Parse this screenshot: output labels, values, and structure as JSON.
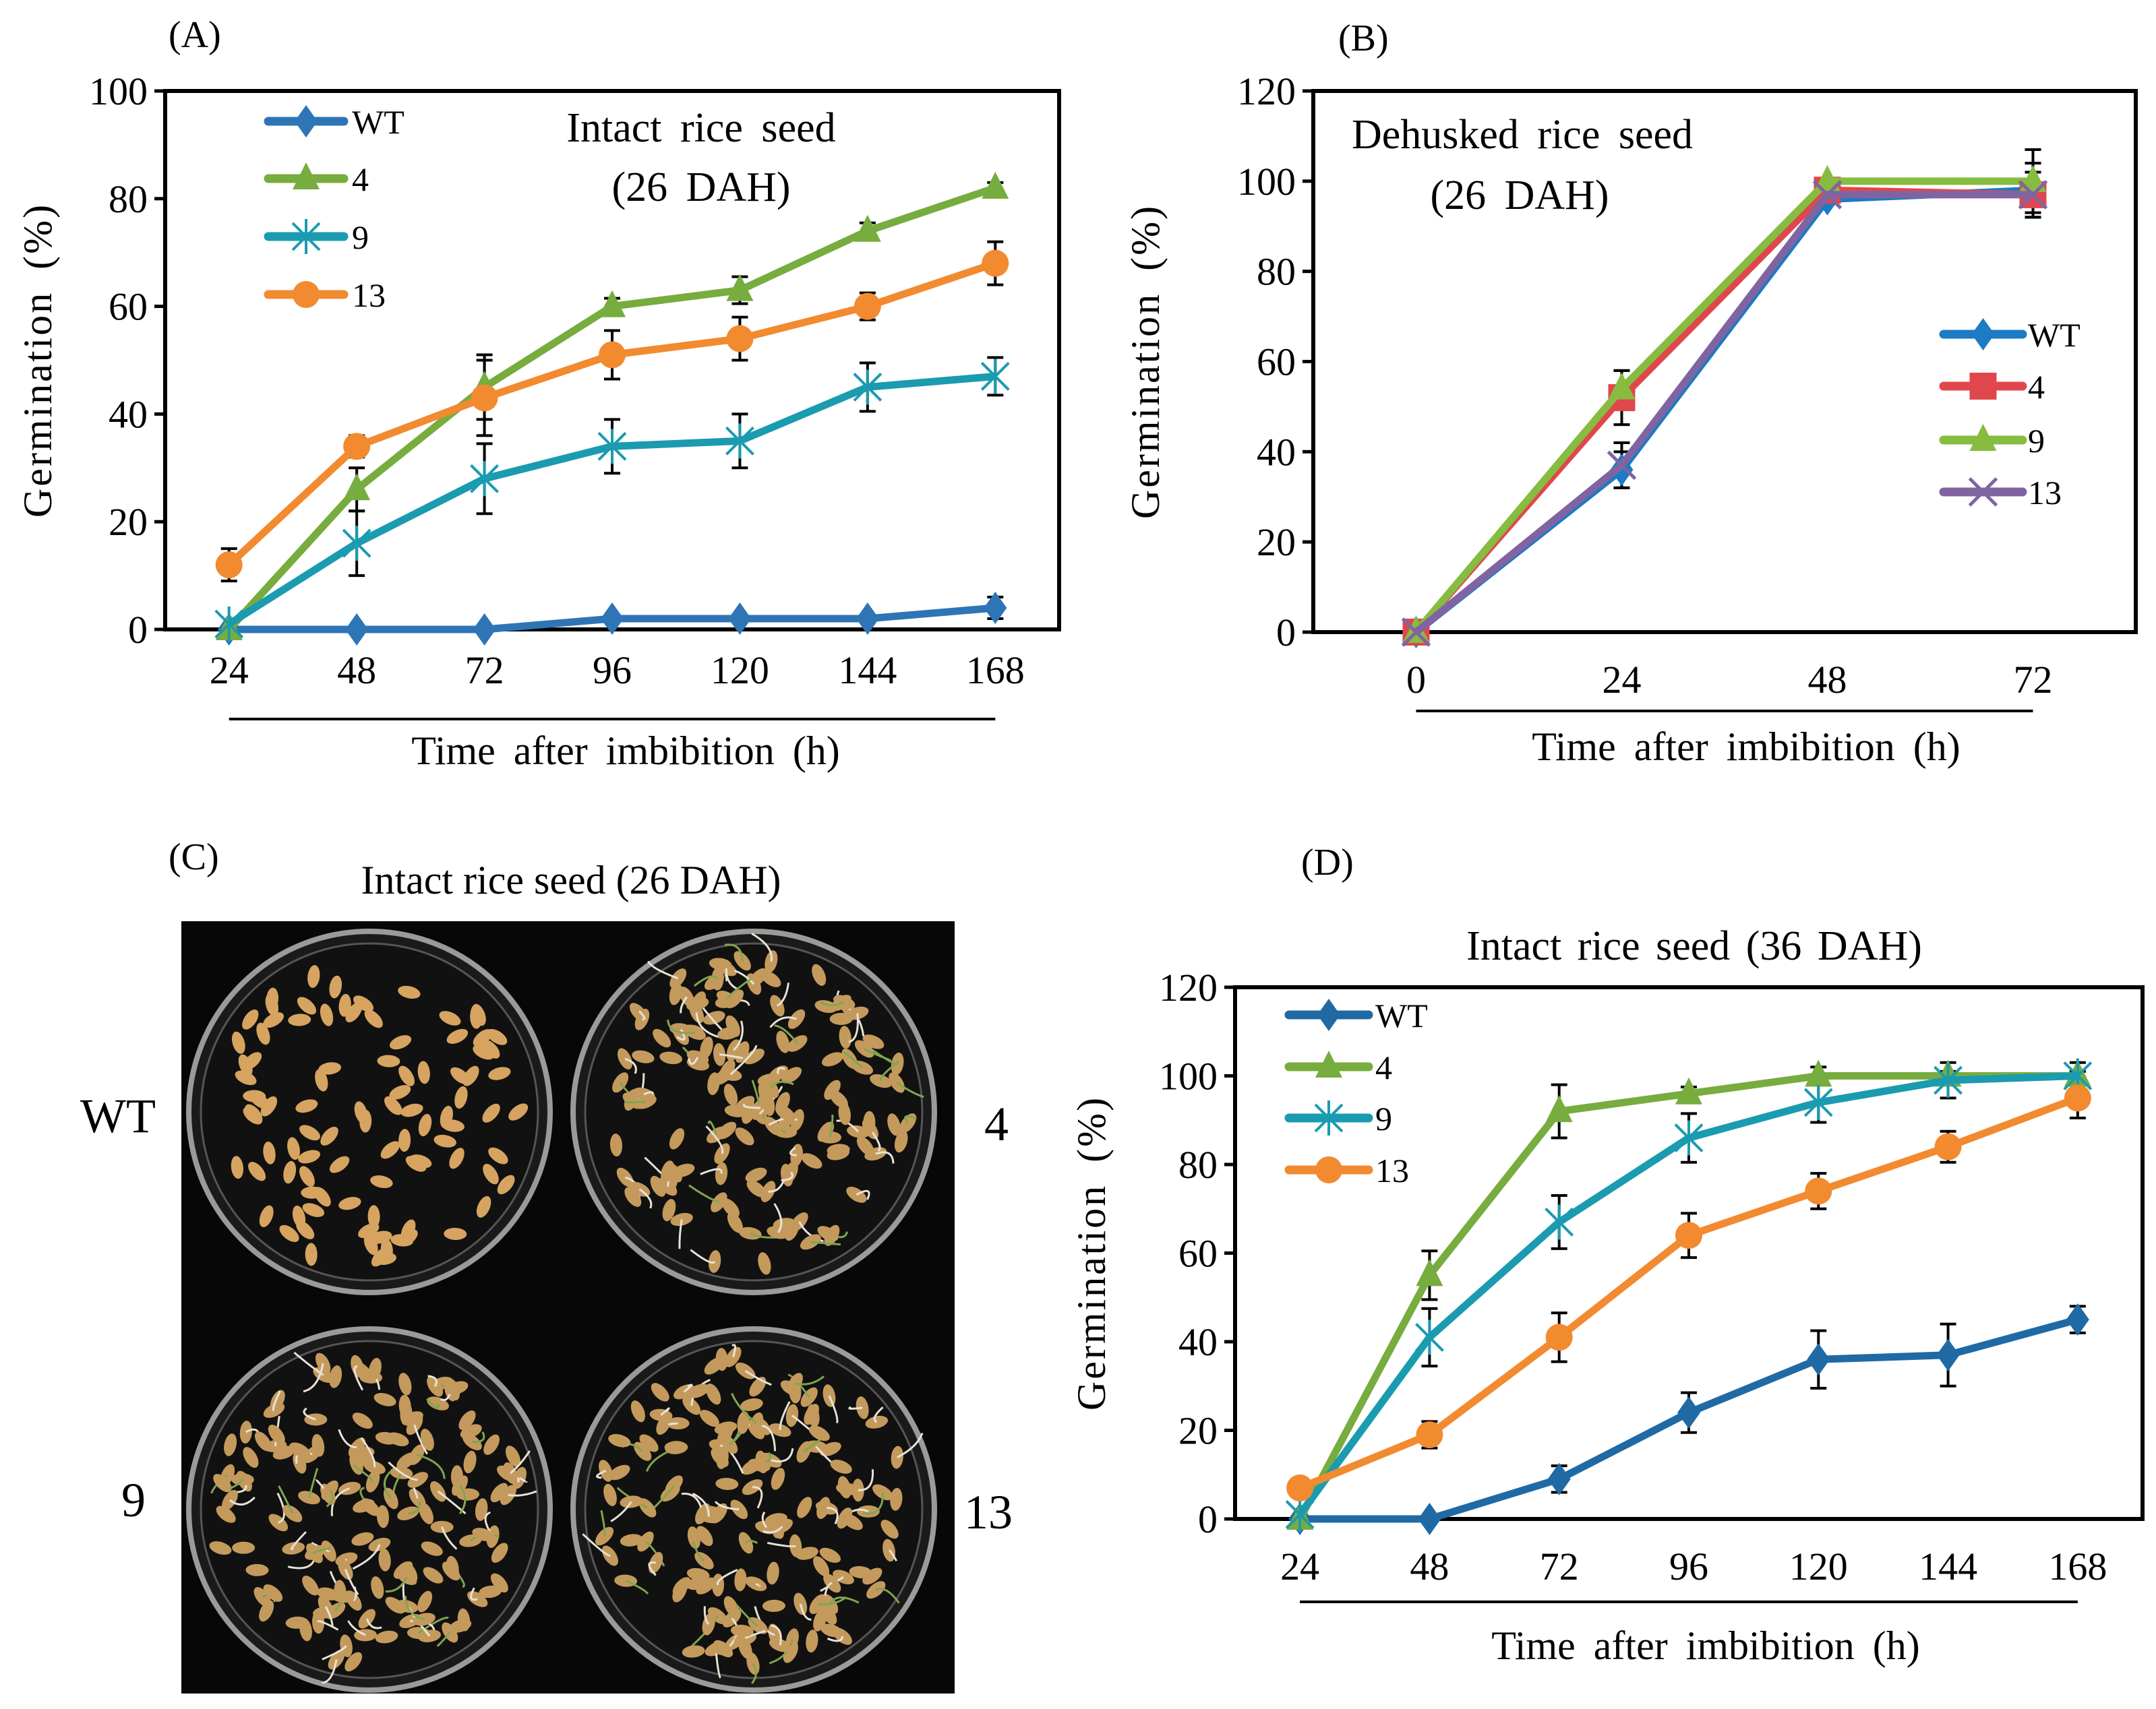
{
  "chart_data": [
    {
      "panel": "(A)",
      "type": "line",
      "annotation": [
        "Intact rice seed",
        "(26 DAH)"
      ],
      "xlabel": "Time after imbibition (h)",
      "ylabel": "Germination (%)",
      "categories": [
        "24",
        "48",
        "72",
        "96",
        "120",
        "144",
        "168"
      ],
      "ylim": [
        0,
        100
      ],
      "yticks": [
        0,
        20,
        40,
        60,
        80,
        100
      ],
      "legend_position": "top-left",
      "series": [
        {
          "name": "WT",
          "color": "#2E75B6",
          "marker": "diamond",
          "values": [
            0,
            0,
            0,
            2,
            2,
            2,
            4
          ],
          "errors": [
            0,
            0,
            0,
            0.5,
            0.5,
            0.5,
            2
          ]
        },
        {
          "name": "4",
          "color": "#77AC3E",
          "marker": "triangle",
          "values": [
            0,
            26,
            45,
            60,
            63,
            74,
            82
          ],
          "errors": [
            0,
            4,
            6,
            1.5,
            2.5,
            1.5,
            1
          ]
        },
        {
          "name": "9",
          "color": "#1A9BB0",
          "marker": "asterisk",
          "values": [
            1,
            16,
            28,
            34,
            35,
            45,
            47
          ],
          "errors": [
            0,
            6,
            6.5,
            5,
            5,
            4.5,
            3.5
          ]
        },
        {
          "name": "13",
          "color": "#F28A30",
          "marker": "circle",
          "values": [
            12,
            34,
            43,
            51,
            54,
            60,
            68
          ],
          "errors": [
            3,
            2,
            7,
            4.5,
            4,
            2.5,
            4
          ]
        }
      ]
    },
    {
      "panel": "(B)",
      "type": "line",
      "annotation": [
        "Dehusked rice seed",
        "(26 DAH)"
      ],
      "xlabel": "Time after imbibition (h)",
      "ylabel": "Germination (%)",
      "categories": [
        "0",
        "24",
        "48",
        "72"
      ],
      "ylim": [
        0,
        120
      ],
      "yticks": [
        0,
        20,
        40,
        60,
        80,
        100,
        120
      ],
      "legend_position": "right",
      "series": [
        {
          "name": "WT",
          "color": "#1B7BC3",
          "marker": "diamond",
          "values": [
            0,
            36,
            96,
            98
          ],
          "errors": [
            0,
            4,
            1,
            6
          ]
        },
        {
          "name": "4",
          "color": "#E0474C",
          "marker": "square",
          "values": [
            0,
            52,
            98,
            97
          ],
          "errors": [
            0,
            6,
            1,
            5
          ]
        },
        {
          "name": "9",
          "color": "#86BC3F",
          "marker": "triangle",
          "values": [
            0,
            54,
            100,
            100
          ],
          "errors": [
            0,
            4,
            0,
            7
          ]
        },
        {
          "name": "13",
          "color": "#8064A2",
          "marker": "x",
          "values": [
            0,
            37,
            97,
            97
          ],
          "errors": [
            0,
            5,
            1,
            5
          ]
        }
      ]
    },
    {
      "panel": "(D)",
      "type": "line",
      "title": "Intact rice seed (36 DAH)",
      "xlabel": "Time after imbibition (h)",
      "ylabel": "Germination (%)",
      "categories": [
        "24",
        "48",
        "72",
        "96",
        "120",
        "144",
        "168"
      ],
      "ylim": [
        0,
        120
      ],
      "yticks": [
        0,
        20,
        40,
        60,
        80,
        100,
        120
      ],
      "legend_position": "top-left",
      "series": [
        {
          "name": "WT",
          "color": "#1F6AA5",
          "marker": "diamond",
          "values": [
            0,
            0,
            9,
            24,
            36,
            37,
            45
          ],
          "errors": [
            0,
            0,
            3,
            4.5,
            6.5,
            7,
            3
          ]
        },
        {
          "name": "4",
          "color": "#77AC3E",
          "marker": "triangle",
          "values": [
            0,
            55,
            92,
            96,
            100,
            100,
            100
          ],
          "errors": [
            0,
            5.5,
            6,
            1.5,
            2,
            1,
            1
          ]
        },
        {
          "name": "9",
          "color": "#1A9BB0",
          "marker": "asterisk",
          "values": [
            1,
            41,
            67,
            86,
            94,
            99,
            100
          ],
          "errors": [
            0,
            6.5,
            6,
            5.5,
            4.5,
            4,
            3
          ]
        },
        {
          "name": "13",
          "color": "#F28A30",
          "marker": "circle",
          "values": [
            7,
            19,
            41,
            64,
            74,
            84,
            95
          ],
          "errors": [
            2,
            3,
            5.5,
            5,
            4,
            3.5,
            4.5
          ]
        }
      ]
    }
  ],
  "photo_panel": {
    "panel": "(C)",
    "title": "Intact rice seed (26 DAH)",
    "labels": {
      "top_left": "WT",
      "top_right": "4",
      "bottom_left": "9",
      "bottom_right": "13"
    }
  }
}
